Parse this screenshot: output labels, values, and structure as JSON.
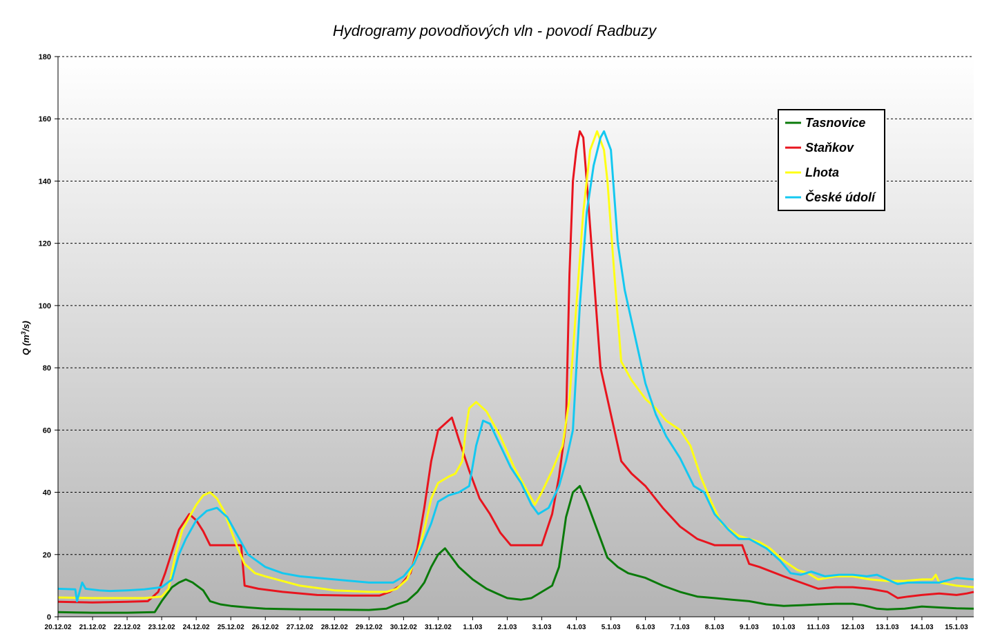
{
  "chart_data": {
    "type": "line",
    "title": "Hydrogramy povodňových vln - povodí Radbuzy",
    "ylabel_prefix": "Q (m",
    "ylabel_sup": "3",
    "ylabel_suffix": "/s)",
    "ylim": [
      0,
      180
    ],
    "yticks": [
      "0",
      "20",
      "40",
      "60",
      "80",
      "100",
      "120",
      "140",
      "160",
      "180"
    ],
    "xlim": [
      0,
      26.5
    ],
    "categories": [
      "20.12.02",
      "21.12.02",
      "22.12.02",
      "23.12.02",
      "24.12.02",
      "25.12.02",
      "26.12.02",
      "27.12.02",
      "28.12.02",
      "29.12.02",
      "30.12.02",
      "31.12.02",
      "1.1.03",
      "2.1.03",
      "3.1.03",
      "4.1.03",
      "5.1.03",
      "6.1.03",
      "7.1.03",
      "8.1.03",
      "9.1.03",
      "10.1.03",
      "11.1.03",
      "12.1.03",
      "13.1.03",
      "14.1.03",
      "15.1.03"
    ],
    "grid": "horizontal dashed",
    "legend_position": "top-right",
    "series": [
      {
        "name": "Tasnovice",
        "color": "#0a7a0a",
        "points": [
          [
            0,
            1.5
          ],
          [
            0.5,
            1.4
          ],
          [
            1,
            1.3
          ],
          [
            2,
            1.3
          ],
          [
            2.8,
            1.5
          ],
          [
            3,
            5
          ],
          [
            3.3,
            9.5
          ],
          [
            3.5,
            11
          ],
          [
            3.7,
            12
          ],
          [
            3.9,
            11
          ],
          [
            4.2,
            8.5
          ],
          [
            4.4,
            5
          ],
          [
            4.7,
            4
          ],
          [
            5,
            3.5
          ],
          [
            5.5,
            3
          ],
          [
            6,
            2.6
          ],
          [
            7,
            2.4
          ],
          [
            8,
            2.3
          ],
          [
            9,
            2.2
          ],
          [
            9.5,
            2.6
          ],
          [
            9.8,
            4
          ],
          [
            10.1,
            5
          ],
          [
            10.4,
            8
          ],
          [
            10.6,
            11
          ],
          [
            10.8,
            16
          ],
          [
            11,
            20
          ],
          [
            11.2,
            22
          ],
          [
            11.4,
            19
          ],
          [
            11.6,
            16
          ],
          [
            12,
            12
          ],
          [
            12.4,
            9
          ],
          [
            12.7,
            7.5
          ],
          [
            13,
            6
          ],
          [
            13.4,
            5.5
          ],
          [
            13.7,
            6
          ],
          [
            14,
            8
          ],
          [
            14.3,
            10
          ],
          [
            14.5,
            16
          ],
          [
            14.7,
            32
          ],
          [
            14.9,
            40
          ],
          [
            15.1,
            42
          ],
          [
            15.3,
            37
          ],
          [
            15.5,
            31
          ],
          [
            15.7,
            25
          ],
          [
            15.9,
            19
          ],
          [
            16.2,
            16
          ],
          [
            16.5,
            14
          ],
          [
            17,
            12.5
          ],
          [
            17.5,
            10
          ],
          [
            18,
            8
          ],
          [
            18.5,
            6.5
          ],
          [
            19,
            6
          ],
          [
            19.5,
            5.5
          ],
          [
            20,
            5
          ],
          [
            20.5,
            4
          ],
          [
            21,
            3.5
          ],
          [
            21.5,
            3.7
          ],
          [
            22,
            4
          ],
          [
            22.5,
            4.2
          ],
          [
            23,
            4.2
          ],
          [
            23.3,
            3.7
          ],
          [
            23.7,
            2.6
          ],
          [
            24,
            2.4
          ],
          [
            24.5,
            2.6
          ],
          [
            25,
            3.3
          ],
          [
            25.5,
            3
          ],
          [
            26,
            2.7
          ],
          [
            26.5,
            2.6
          ]
        ]
      },
      {
        "name": "Staňkov",
        "color": "#e8141e",
        "points": [
          [
            0,
            4.8
          ],
          [
            1,
            4.6
          ],
          [
            2,
            4.8
          ],
          [
            2.6,
            5
          ],
          [
            2.9,
            8
          ],
          [
            3.1,
            14
          ],
          [
            3.3,
            21
          ],
          [
            3.5,
            28
          ],
          [
            3.8,
            33
          ],
          [
            4,
            31
          ],
          [
            4.2,
            27.5
          ],
          [
            4.4,
            23
          ],
          [
            4.8,
            23
          ],
          [
            5.2,
            23
          ],
          [
            5.3,
            23
          ],
          [
            5.4,
            10
          ],
          [
            5.8,
            9
          ],
          [
            6.5,
            8
          ],
          [
            7.5,
            7
          ],
          [
            8.5,
            6.8
          ],
          [
            9.3,
            6.8
          ],
          [
            9.6,
            8
          ],
          [
            9.9,
            10
          ],
          [
            10.2,
            14
          ],
          [
            10.4,
            22
          ],
          [
            10.6,
            35
          ],
          [
            10.8,
            50
          ],
          [
            11,
            60
          ],
          [
            11.2,
            62
          ],
          [
            11.4,
            64
          ],
          [
            11.6,
            57
          ],
          [
            11.9,
            47
          ],
          [
            12.2,
            38
          ],
          [
            12.5,
            33
          ],
          [
            12.8,
            27
          ],
          [
            13.1,
            23
          ],
          [
            13.4,
            23
          ],
          [
            13.7,
            23
          ],
          [
            14,
            23
          ],
          [
            14.3,
            33
          ],
          [
            14.5,
            45
          ],
          [
            14.7,
            62
          ],
          [
            14.8,
            110
          ],
          [
            14.9,
            140
          ],
          [
            15,
            150
          ],
          [
            15.1,
            156
          ],
          [
            15.2,
            154
          ],
          [
            15.3,
            140
          ],
          [
            15.5,
            110
          ],
          [
            15.7,
            80
          ],
          [
            15.9,
            70
          ],
          [
            16.1,
            60
          ],
          [
            16.3,
            50
          ],
          [
            16.6,
            46
          ],
          [
            17,
            42
          ],
          [
            17.5,
            35
          ],
          [
            18,
            29
          ],
          [
            18.5,
            25
          ],
          [
            19,
            23
          ],
          [
            19.4,
            23
          ],
          [
            19.8,
            23
          ],
          [
            20,
            17
          ],
          [
            20.3,
            16
          ],
          [
            21,
            13
          ],
          [
            21.5,
            11
          ],
          [
            22,
            9
          ],
          [
            22.5,
            9.5
          ],
          [
            23,
            9.5
          ],
          [
            23.5,
            9
          ],
          [
            24,
            8
          ],
          [
            24.3,
            6
          ],
          [
            24.6,
            6.5
          ],
          [
            25,
            7
          ],
          [
            25.5,
            7.5
          ],
          [
            26,
            7
          ],
          [
            26.3,
            7.5
          ],
          [
            26.5,
            8
          ]
        ]
      },
      {
        "name": "Lhota",
        "color": "#ffff14",
        "points": [
          [
            0,
            6.2
          ],
          [
            1,
            6
          ],
          [
            2,
            6
          ],
          [
            2.5,
            6
          ],
          [
            3,
            6.5
          ],
          [
            3.2,
            9
          ],
          [
            3.4,
            20
          ],
          [
            3.6,
            28
          ],
          [
            3.8,
            32
          ],
          [
            4,
            36
          ],
          [
            4.2,
            39
          ],
          [
            4.4,
            40
          ],
          [
            4.6,
            38
          ],
          [
            4.8,
            34
          ],
          [
            5,
            28
          ],
          [
            5.2,
            22
          ],
          [
            5.4,
            17
          ],
          [
            5.7,
            14
          ],
          [
            6,
            13
          ],
          [
            7,
            10
          ],
          [
            8,
            8.5
          ],
          [
            9,
            8
          ],
          [
            9.5,
            8
          ],
          [
            9.8,
            9
          ],
          [
            10.1,
            12
          ],
          [
            10.4,
            20
          ],
          [
            10.6,
            28
          ],
          [
            10.8,
            38
          ],
          [
            11,
            43
          ],
          [
            11.3,
            45
          ],
          [
            11.5,
            46
          ],
          [
            11.7,
            50
          ],
          [
            11.8,
            60
          ],
          [
            11.9,
            67
          ],
          [
            12.1,
            69
          ],
          [
            12.4,
            66
          ],
          [
            12.8,
            58
          ],
          [
            13.2,
            48
          ],
          [
            13.6,
            40
          ],
          [
            13.8,
            36
          ],
          [
            14,
            40
          ],
          [
            14.3,
            47
          ],
          [
            14.6,
            55
          ],
          [
            14.8,
            70
          ],
          [
            15,
            100
          ],
          [
            15.2,
            130
          ],
          [
            15.4,
            150
          ],
          [
            15.6,
            156
          ],
          [
            15.8,
            150
          ],
          [
            15.9,
            140
          ],
          [
            16.1,
            110
          ],
          [
            16.3,
            82
          ],
          [
            16.6,
            76
          ],
          [
            17,
            70
          ],
          [
            17.3,
            67
          ],
          [
            17.6,
            63
          ],
          [
            18,
            60
          ],
          [
            18.3,
            55
          ],
          [
            18.6,
            45
          ],
          [
            18.9,
            37
          ],
          [
            19.2,
            30
          ],
          [
            19.7,
            26
          ],
          [
            20,
            25
          ],
          [
            20.3,
            24
          ],
          [
            20.6,
            22
          ],
          [
            21,
            18
          ],
          [
            21.4,
            15
          ],
          [
            21.7,
            14
          ],
          [
            22,
            12
          ],
          [
            22.5,
            13
          ],
          [
            23,
            13
          ],
          [
            23.5,
            12
          ],
          [
            24,
            11.5
          ],
          [
            24.5,
            11.5
          ],
          [
            25,
            12
          ],
          [
            25.3,
            12
          ],
          [
            25.4,
            13.5
          ],
          [
            25.5,
            11
          ],
          [
            26,
            10
          ],
          [
            26.5,
            9.5
          ]
        ]
      },
      {
        "name": "České údolí",
        "color": "#14c8f0",
        "points": [
          [
            0,
            9
          ],
          [
            0.5,
            8.8
          ],
          [
            0.55,
            5
          ],
          [
            0.7,
            11
          ],
          [
            0.8,
            9
          ],
          [
            1.2,
            8.5
          ],
          [
            1.5,
            8.3
          ],
          [
            2,
            8.5
          ],
          [
            2.5,
            8.8
          ],
          [
            3,
            9.5
          ],
          [
            3.3,
            12
          ],
          [
            3.5,
            20
          ],
          [
            3.7,
            25
          ],
          [
            4,
            31
          ],
          [
            4.3,
            34
          ],
          [
            4.6,
            35
          ],
          [
            4.9,
            32
          ],
          [
            5.2,
            26
          ],
          [
            5.5,
            20
          ],
          [
            6,
            16
          ],
          [
            6.5,
            14
          ],
          [
            7,
            13
          ],
          [
            8,
            12
          ],
          [
            9,
            11
          ],
          [
            9.7,
            11
          ],
          [
            10,
            13
          ],
          [
            10.3,
            17
          ],
          [
            10.5,
            22
          ],
          [
            10.8,
            30
          ],
          [
            11,
            37
          ],
          [
            11.3,
            39
          ],
          [
            11.6,
            40
          ],
          [
            11.9,
            42
          ],
          [
            12.1,
            55
          ],
          [
            12.3,
            63
          ],
          [
            12.5,
            62
          ],
          [
            12.8,
            55
          ],
          [
            13.1,
            48
          ],
          [
            13.4,
            43
          ],
          [
            13.7,
            36
          ],
          [
            13.9,
            33
          ],
          [
            14.2,
            35
          ],
          [
            14.5,
            42
          ],
          [
            14.7,
            50
          ],
          [
            14.9,
            60
          ],
          [
            15.1,
            100
          ],
          [
            15.3,
            130
          ],
          [
            15.5,
            145
          ],
          [
            15.7,
            154
          ],
          [
            15.8,
            156
          ],
          [
            16,
            150
          ],
          [
            16.2,
            120
          ],
          [
            16.4,
            105
          ],
          [
            16.6,
            95
          ],
          [
            17,
            75
          ],
          [
            17.3,
            65
          ],
          [
            17.6,
            58
          ],
          [
            18,
            51
          ],
          [
            18.4,
            42
          ],
          [
            18.7,
            40
          ],
          [
            19,
            33
          ],
          [
            19.4,
            28
          ],
          [
            19.7,
            25
          ],
          [
            20,
            25
          ],
          [
            20.5,
            22
          ],
          [
            20.9,
            18
          ],
          [
            21.2,
            14
          ],
          [
            21.5,
            13.5
          ],
          [
            21.8,
            14.5
          ],
          [
            22.2,
            13
          ],
          [
            22.6,
            13.5
          ],
          [
            23,
            13.5
          ],
          [
            23.4,
            13
          ],
          [
            23.7,
            13.5
          ],
          [
            24,
            12
          ],
          [
            24.3,
            10.5
          ],
          [
            24.6,
            11
          ],
          [
            25,
            11
          ],
          [
            25.5,
            11
          ],
          [
            26,
            12.5
          ],
          [
            26.5,
            12
          ]
        ]
      }
    ]
  }
}
